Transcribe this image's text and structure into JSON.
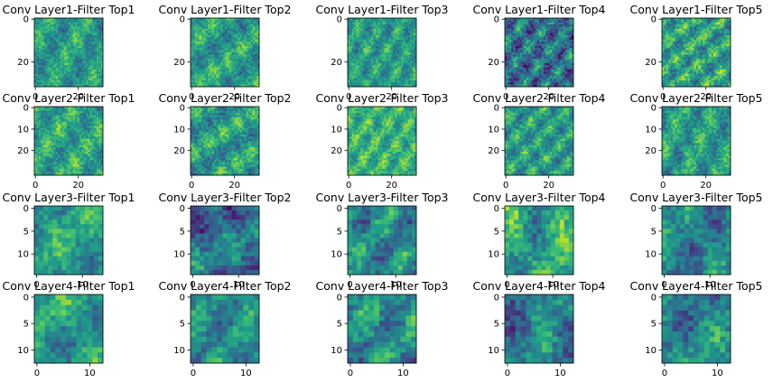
{
  "chart_data": {
    "type": "heatmap",
    "colormap": "viridis",
    "colormap_stops": [
      "#440154",
      "#482878",
      "#3e4989",
      "#31688e",
      "#26828e",
      "#1f9e89",
      "#35b779",
      "#6ece58",
      "#b5de2b",
      "#fde725"
    ],
    "grid": false,
    "rows": [
      {
        "layer": "Layer1",
        "size": 32,
        "x_ticks": [
          0,
          20
        ],
        "y_ticks": [
          0,
          20
        ],
        "panels": [
          {
            "title": "Conv Layer1-Filter Top1",
            "mean": 0.55,
            "spread": 0.22,
            "seed": 11
          },
          {
            "title": "Conv Layer1-Filter Top2",
            "mean": 0.55,
            "spread": 0.24,
            "seed": 12
          },
          {
            "title": "Conv Layer1-Filter Top3",
            "mean": 0.55,
            "spread": 0.22,
            "seed": 13
          },
          {
            "title": "Conv Layer1-Filter Top4",
            "mean": 0.38,
            "spread": 0.3,
            "seed": 14
          },
          {
            "title": "Conv Layer1-Filter Top5",
            "mean": 0.58,
            "spread": 0.28,
            "seed": 15
          }
        ]
      },
      {
        "layer": "Layer2",
        "size": 32,
        "x_ticks": [
          0,
          20
        ],
        "y_ticks": [
          0,
          10,
          20
        ],
        "panels": [
          {
            "title": "Conv Layer2-Filter Top1",
            "mean": 0.58,
            "spread": 0.24,
            "seed": 21
          },
          {
            "title": "Conv Layer2-Filter Top2",
            "mean": 0.55,
            "spread": 0.26,
            "seed": 22
          },
          {
            "title": "Conv Layer2-Filter Top3",
            "mean": 0.65,
            "spread": 0.22,
            "seed": 23
          },
          {
            "title": "Conv Layer2-Filter Top4",
            "mean": 0.55,
            "spread": 0.24,
            "seed": 24
          },
          {
            "title": "Conv Layer2-Filter Top5",
            "mean": 0.55,
            "spread": 0.24,
            "seed": 25
          }
        ]
      },
      {
        "layer": "Layer3",
        "size": 15,
        "x_ticks": [
          0,
          10
        ],
        "y_ticks": [
          0,
          5,
          10
        ],
        "panels": [
          {
            "title": "Conv Layer3-Filter Top1",
            "mean": 0.55,
            "spread": 0.22,
            "seed": 31
          },
          {
            "title": "Conv Layer3-Filter Top2",
            "mean": 0.38,
            "spread": 0.26,
            "seed": 32
          },
          {
            "title": "Conv Layer3-Filter Top3",
            "mean": 0.48,
            "spread": 0.26,
            "seed": 33
          },
          {
            "title": "Conv Layer3-Filter Top4",
            "mean": 0.58,
            "spread": 0.26,
            "seed": 34
          },
          {
            "title": "Conv Layer3-Filter Top5",
            "mean": 0.45,
            "spread": 0.24,
            "seed": 35
          }
        ]
      },
      {
        "layer": "Layer4",
        "size": 13,
        "x_ticks": [
          0,
          10
        ],
        "y_ticks": [
          0,
          5,
          10
        ],
        "panels": [
          {
            "title": "Conv Layer4-Filter Top1",
            "mean": 0.55,
            "spread": 0.24,
            "seed": 41
          },
          {
            "title": "Conv Layer4-Filter Top2",
            "mean": 0.48,
            "spread": 0.24,
            "seed": 42
          },
          {
            "title": "Conv Layer4-Filter Top3",
            "mean": 0.5,
            "spread": 0.26,
            "seed": 43
          },
          {
            "title": "Conv Layer4-Filter Top4",
            "mean": 0.42,
            "spread": 0.26,
            "seed": 44
          },
          {
            "title": "Conv Layer4-Filter Top5",
            "mean": 0.45,
            "spread": 0.26,
            "seed": 45
          }
        ]
      }
    ]
  }
}
